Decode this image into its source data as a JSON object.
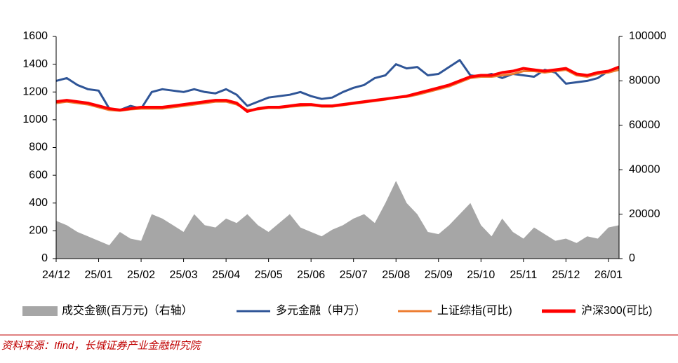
{
  "chart_data": {
    "type": "line",
    "categories": [
      "24/12",
      null,
      null,
      null,
      "25/01",
      null,
      null,
      null,
      "25/02",
      null,
      null,
      null,
      "25/03",
      null,
      null,
      null,
      "25/04",
      null,
      null,
      null,
      "25/05",
      null,
      null,
      null,
      "25/06",
      null,
      null,
      null,
      "25/07",
      null,
      null,
      null,
      "25/08",
      null,
      null,
      null,
      "25/09",
      null,
      null,
      null,
      "25/10",
      null,
      null,
      null,
      "25/11",
      null,
      null,
      null,
      "25/12",
      null,
      null,
      null,
      "26/01",
      null
    ],
    "series": [
      {
        "name": "成交金额(百万元)（右轴）",
        "color": "#a6a6a6",
        "kind": "area",
        "axis": "y2",
        "values": [
          17000,
          15000,
          12000,
          10000,
          8000,
          6000,
          12000,
          9000,
          8000,
          20000,
          18000,
          15000,
          12000,
          20000,
          15000,
          14000,
          18000,
          16000,
          20000,
          15000,
          12000,
          16000,
          20000,
          14000,
          12000,
          10000,
          13000,
          15000,
          18000,
          20000,
          16000,
          25000,
          35000,
          25000,
          20000,
          12000,
          11000,
          15000,
          20000,
          25000,
          15000,
          10000,
          18000,
          12000,
          9000,
          14000,
          11000,
          8000,
          9000,
          7000,
          10000,
          9000,
          14000,
          15000
        ]
      },
      {
        "name": "多元金融（申万）",
        "color": "#2f5597",
        "kind": "line",
        "values": [
          1280,
          1300,
          1250,
          1220,
          1210,
          1080,
          1070,
          1100,
          1080,
          1200,
          1220,
          1210,
          1200,
          1220,
          1200,
          1190,
          1220,
          1180,
          1100,
          1130,
          1160,
          1170,
          1180,
          1200,
          1170,
          1150,
          1160,
          1200,
          1230,
          1250,
          1300,
          1320,
          1400,
          1370,
          1380,
          1320,
          1330,
          1380,
          1430,
          1320,
          1310,
          1330,
          1300,
          1330,
          1320,
          1310,
          1360,
          1340,
          1260,
          1270,
          1280,
          1300,
          1350,
          1380
        ]
      },
      {
        "name": "上证综指(可比)",
        "color": "#ed7d31",
        "kind": "line",
        "values": [
          1120,
          1130,
          1120,
          1110,
          1090,
          1070,
          1065,
          1075,
          1080,
          1080,
          1080,
          1090,
          1100,
          1110,
          1120,
          1130,
          1130,
          1110,
          1070,
          1075,
          1085,
          1085,
          1095,
          1100,
          1105,
          1095,
          1095,
          1105,
          1115,
          1125,
          1135,
          1145,
          1160,
          1165,
          1180,
          1200,
          1220,
          1240,
          1270,
          1300,
          1310,
          1310,
          1320,
          1330,
          1350,
          1350,
          1340,
          1350,
          1360,
          1320,
          1310,
          1330,
          1340,
          1360
        ]
      },
      {
        "name": "沪深300(可比)",
        "color": "#ff0000",
        "kind": "line",
        "values": [
          1130,
          1140,
          1130,
          1120,
          1100,
          1080,
          1070,
          1080,
          1090,
          1090,
          1090,
          1100,
          1110,
          1120,
          1130,
          1140,
          1140,
          1120,
          1060,
          1080,
          1090,
          1090,
          1100,
          1110,
          1110,
          1100,
          1100,
          1110,
          1120,
          1130,
          1140,
          1150,
          1160,
          1170,
          1190,
          1210,
          1230,
          1250,
          1280,
          1310,
          1320,
          1320,
          1340,
          1350,
          1370,
          1360,
          1350,
          1360,
          1370,
          1330,
          1320,
          1340,
          1350,
          1380
        ]
      }
    ],
    "ylim": [
      0,
      1600
    ],
    "yticks": [
      0,
      200,
      400,
      600,
      800,
      1000,
      1200,
      1400,
      1600
    ],
    "y2lim": [
      0,
      100000
    ],
    "y2ticks": [
      0,
      20000,
      40000,
      60000,
      80000,
      100000
    ],
    "legend": "bottom",
    "source": "资料来源：Ifind，长城证券产业金融研究院"
  }
}
